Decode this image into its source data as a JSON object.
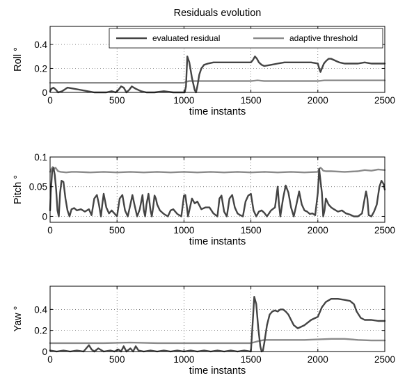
{
  "chart_data": [
    {
      "type": "line",
      "title": "Residuals evolution",
      "xlabel": "time instants",
      "ylabel": "Roll °",
      "xlim": [
        0,
        2500
      ],
      "ylim": [
        0,
        0.55
      ],
      "xticks": [
        "0",
        "500",
        "1000",
        "1500",
        "2000",
        "2500"
      ],
      "xtick_values": [
        0,
        500,
        1000,
        1500,
        2000,
        2500
      ],
      "yticks": [
        "0",
        "0.2",
        "0.4"
      ],
      "ytick_values": [
        0,
        0.2,
        0.4
      ],
      "grid": true,
      "legend": {
        "placement": "top-right",
        "entries": [
          "evaluated residual",
          "adaptive threshold"
        ]
      },
      "series": [
        {
          "name": "evaluated residual",
          "color": "#444444",
          "x": [
            0,
            10,
            25,
            45,
            60,
            90,
            130,
            180,
            230,
            280,
            330,
            380,
            420,
            460,
            490,
            510,
            530,
            550,
            570,
            590,
            610,
            640,
            680,
            720,
            780,
            850,
            920,
            980,
            1005,
            1015,
            1025,
            1040,
            1060,
            1080,
            1090,
            1100,
            1115,
            1130,
            1150,
            1180,
            1220,
            1260,
            1300,
            1350,
            1400,
            1450,
            1500,
            1515,
            1530,
            1545,
            1560,
            1580,
            1600,
            1650,
            1700,
            1750,
            1800,
            1850,
            1900,
            1950,
            2000,
            2010,
            2020,
            2030,
            2045,
            2060,
            2080,
            2100,
            2120,
            2140,
            2160,
            2200,
            2250,
            2300,
            2350,
            2400,
            2450,
            2500
          ],
          "y": [
            0.01,
            0.03,
            0.04,
            0.02,
            0.0,
            0.01,
            0.04,
            0.03,
            0.02,
            0.01,
            0.0,
            0.0,
            0.0,
            0.01,
            0.0,
            0.02,
            0.05,
            0.04,
            0.0,
            0.02,
            0.05,
            0.03,
            0.01,
            0.0,
            0.0,
            0.01,
            0.0,
            0.0,
            0.0,
            0.05,
            0.3,
            0.25,
            0.12,
            0.02,
            0.0,
            0.05,
            0.15,
            0.2,
            0.23,
            0.24,
            0.25,
            0.25,
            0.25,
            0.25,
            0.25,
            0.25,
            0.25,
            0.27,
            0.3,
            0.28,
            0.25,
            0.23,
            0.22,
            0.23,
            0.24,
            0.25,
            0.25,
            0.25,
            0.25,
            0.25,
            0.24,
            0.2,
            0.17,
            0.2,
            0.24,
            0.26,
            0.28,
            0.28,
            0.27,
            0.26,
            0.25,
            0.24,
            0.24,
            0.24,
            0.25,
            0.24,
            0.24,
            0.24
          ]
        },
        {
          "name": "adaptive threshold",
          "color": "#8a8a8a",
          "x": [
            0,
            200,
            500,
            800,
            1000,
            1020,
            1040,
            1200,
            1400,
            1500,
            1550,
            1600,
            1800,
            2000,
            2050,
            2200,
            2500
          ],
          "y": [
            0.08,
            0.08,
            0.08,
            0.08,
            0.08,
            0.09,
            0.095,
            0.095,
            0.095,
            0.095,
            0.1,
            0.095,
            0.095,
            0.095,
            0.1,
            0.1,
            0.1
          ]
        }
      ]
    },
    {
      "type": "line",
      "xlabel": "time instants",
      "ylabel": "Pitch °",
      "xlim": [
        0,
        2500
      ],
      "ylim": [
        -0.01,
        0.1
      ],
      "xticks": [
        "0",
        "500",
        "1000",
        "1500",
        "2000",
        "2500"
      ],
      "xtick_values": [
        0,
        500,
        1000,
        1500,
        2000,
        2500
      ],
      "yticks": [
        "0",
        "0.05",
        "0.1"
      ],
      "ytick_values": [
        0,
        0.05,
        0.1
      ],
      "grid": true,
      "series": [
        {
          "name": "evaluated residual",
          "color": "#444444",
          "x": [
            0,
            5,
            15,
            25,
            35,
            45,
            55,
            65,
            75,
            85,
            100,
            115,
            130,
            145,
            160,
            180,
            200,
            230,
            260,
            290,
            310,
            330,
            350,
            365,
            380,
            390,
            400,
            420,
            440,
            460,
            480,
            500,
            520,
            540,
            560,
            580,
            600,
            615,
            630,
            650,
            670,
            690,
            700,
            710,
            720,
            735,
            750,
            760,
            770,
            780,
            790,
            800,
            820,
            850,
            880,
            900,
            920,
            950,
            980,
            1000,
            1010,
            1020,
            1030,
            1040,
            1060,
            1080,
            1100,
            1130,
            1160,
            1190,
            1220,
            1250,
            1265,
            1280,
            1300,
            1320,
            1340,
            1360,
            1380,
            1400,
            1420,
            1440,
            1460,
            1480,
            1500,
            1520,
            1540,
            1560,
            1580,
            1600,
            1620,
            1650,
            1680,
            1700,
            1710,
            1720,
            1740,
            1760,
            1780,
            1800,
            1820,
            1840,
            1860,
            1880,
            1900,
            1920,
            1940,
            1960,
            1980,
            2000,
            2010,
            2020,
            2030,
            2040,
            2050,
            2060,
            2080,
            2100,
            2120,
            2150,
            2180,
            2210,
            2240,
            2270,
            2300,
            2330,
            2350,
            2360,
            2370,
            2380,
            2400,
            2420,
            2440,
            2460,
            2475,
            2490,
            2500
          ],
          "y": [
            0.01,
            0.04,
            0.075,
            0.082,
            0.07,
            0.045,
            0.01,
            0.0,
            0.04,
            0.06,
            0.058,
            0.03,
            0.01,
            0.0,
            0.012,
            0.014,
            0.01,
            0.012,
            0.008,
            0.012,
            0.002,
            0.03,
            0.036,
            0.02,
            0.0,
            0.02,
            0.038,
            0.015,
            0.005,
            0.01,
            0.005,
            0.0,
            0.03,
            0.036,
            0.01,
            0.0,
            0.02,
            0.036,
            0.02,
            0.0,
            0.012,
            0.036,
            0.01,
            0.0,
            0.02,
            0.038,
            0.01,
            0.0,
            0.015,
            0.035,
            0.03,
            0.02,
            0.01,
            0.004,
            0.0,
            0.01,
            0.012,
            0.004,
            0.0,
            0.035,
            0.036,
            0.02,
            0.0,
            0.01,
            0.03,
            0.022,
            0.025,
            0.012,
            0.015,
            0.015,
            0.005,
            0.0,
            0.03,
            0.035,
            0.008,
            0.0,
            0.03,
            0.036,
            0.015,
            0.005,
            0.002,
            0.0,
            0.025,
            0.035,
            0.038,
            0.01,
            0.0,
            0.008,
            0.01,
            0.006,
            0.0,
            0.01,
            0.015,
            0.05,
            0.02,
            0.0,
            0.03,
            0.052,
            0.04,
            0.015,
            0.0,
            0.02,
            0.042,
            0.02,
            0.01,
            0.008,
            0.004,
            0.005,
            0.002,
            0.04,
            0.08,
            0.06,
            0.04,
            0.0,
            0.01,
            0.03,
            0.02,
            0.015,
            0.012,
            0.008,
            0.01,
            0.005,
            0.003,
            0.0,
            0.0,
            0.005,
            0.03,
            0.042,
            0.03,
            0.002,
            0.0,
            0.008,
            0.02,
            0.05,
            0.06,
            0.055,
            0.045
          ]
        },
        {
          "name": "adaptive threshold",
          "color": "#8a8a8a",
          "x": [
            0,
            10,
            20,
            30,
            40,
            50,
            60,
            80,
            120,
            160,
            200,
            300,
            400,
            500,
            600,
            700,
            800,
            900,
            1000,
            1100,
            1200,
            1300,
            1400,
            1500,
            1600,
            1700,
            1800,
            1900,
            2000,
            2010,
            2020,
            2030,
            2040,
            2060,
            2100,
            2200,
            2300,
            2350,
            2400,
            2450,
            2500
          ],
          "y": [
            0.075,
            0.08,
            0.083,
            0.08,
            0.082,
            0.079,
            0.076,
            0.075,
            0.074,
            0.075,
            0.075,
            0.074,
            0.075,
            0.074,
            0.075,
            0.074,
            0.075,
            0.074,
            0.075,
            0.074,
            0.075,
            0.074,
            0.075,
            0.074,
            0.075,
            0.074,
            0.075,
            0.074,
            0.075,
            0.08,
            0.082,
            0.08,
            0.077,
            0.076,
            0.076,
            0.075,
            0.076,
            0.078,
            0.077,
            0.079,
            0.078
          ]
        }
      ]
    },
    {
      "type": "line",
      "xlabel": "time instants",
      "ylabel": "Yaw °",
      "xlim": [
        0,
        2500
      ],
      "ylim": [
        0,
        0.62
      ],
      "xticks": [
        "0",
        "500",
        "1000",
        "1500",
        "2000",
        "2500"
      ],
      "xtick_values": [
        0,
        500,
        1000,
        1500,
        2000,
        2500
      ],
      "yticks": [
        "0",
        "0.2",
        "0.4"
      ],
      "ytick_values": [
        0,
        0.2,
        0.4
      ],
      "grid": true,
      "series": [
        {
          "name": "evaluated residual",
          "color": "#444444",
          "x": [
            0,
            50,
            100,
            150,
            200,
            250,
            270,
            290,
            310,
            330,
            360,
            400,
            450,
            480,
            510,
            530,
            550,
            570,
            600,
            620,
            640,
            660,
            700,
            750,
            800,
            850,
            900,
            950,
            1000,
            1050,
            1100,
            1150,
            1200,
            1250,
            1300,
            1350,
            1400,
            1450,
            1500,
            1510,
            1525,
            1540,
            1555,
            1570,
            1580,
            1590,
            1600,
            1620,
            1640,
            1660,
            1680,
            1700,
            1720,
            1740,
            1760,
            1780,
            1800,
            1820,
            1850,
            1900,
            1950,
            2000,
            2030,
            2060,
            2100,
            2150,
            2200,
            2240,
            2270,
            2290,
            2320,
            2350,
            2400,
            2450,
            2500
          ],
          "y": [
            0.01,
            0.0,
            0.01,
            0.0,
            0.01,
            0.0,
            0.03,
            0.06,
            0.02,
            0.0,
            0.03,
            0.0,
            0.01,
            0.0,
            0.02,
            0.0,
            0.05,
            0.0,
            0.03,
            0.0,
            0.05,
            0.01,
            0.0,
            0.01,
            0.0,
            0.01,
            0.0,
            0.01,
            0.0,
            0.01,
            0.0,
            0.01,
            0.0,
            0.01,
            0.0,
            0.01,
            0.0,
            0.01,
            0.0,
            0.2,
            0.52,
            0.45,
            0.22,
            0.05,
            0.0,
            0.01,
            0.08,
            0.25,
            0.35,
            0.38,
            0.39,
            0.38,
            0.4,
            0.4,
            0.38,
            0.35,
            0.3,
            0.25,
            0.22,
            0.25,
            0.3,
            0.33,
            0.42,
            0.47,
            0.5,
            0.5,
            0.49,
            0.48,
            0.45,
            0.38,
            0.32,
            0.3,
            0.3,
            0.29,
            0.29
          ]
        },
        {
          "name": "adaptive threshold",
          "color": "#8a8a8a",
          "x": [
            0,
            200,
            400,
            600,
            800,
            1000,
            1200,
            1400,
            1500,
            1530,
            1560,
            1600,
            1700,
            1800,
            1900,
            2000,
            2100,
            2200,
            2300,
            2400,
            2500
          ],
          "y": [
            0.08,
            0.08,
            0.08,
            0.085,
            0.08,
            0.08,
            0.08,
            0.08,
            0.08,
            0.09,
            0.1,
            0.11,
            0.11,
            0.11,
            0.11,
            0.115,
            0.12,
            0.12,
            0.11,
            0.105,
            0.105
          ]
        }
      ]
    }
  ]
}
